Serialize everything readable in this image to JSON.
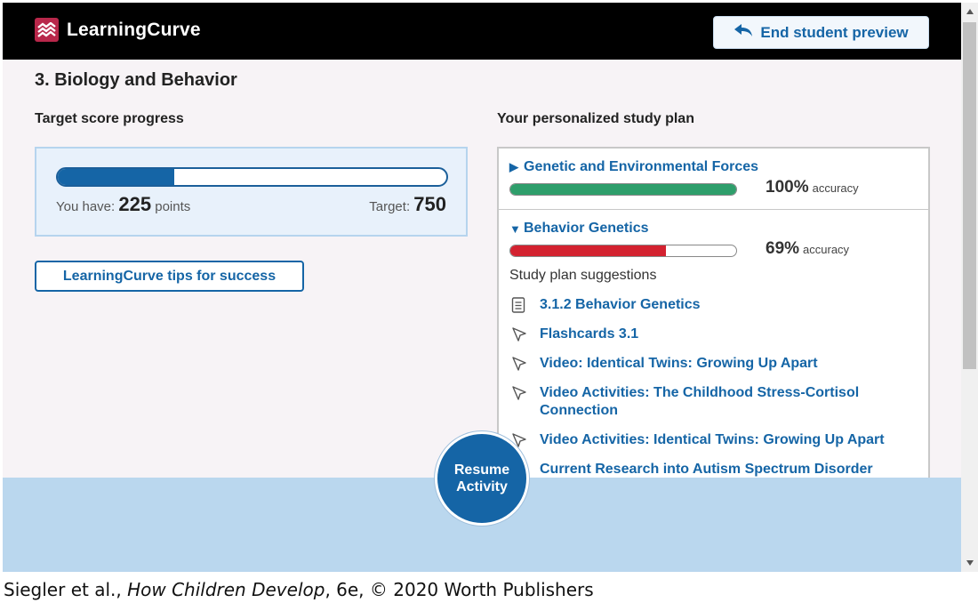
{
  "header": {
    "app_name": "LearningCurve",
    "end_preview_label": "End student preview",
    "brand_color": "#b8274a"
  },
  "page": {
    "title": "3. Biology and Behavior"
  },
  "progress": {
    "label": "Target score progress",
    "you_have_prefix": "You have:",
    "points": "225",
    "points_suffix": "points",
    "target_prefix": "Target:",
    "target": "750",
    "fraction": 0.3
  },
  "tips_button": "LearningCurve tips for success",
  "study_plan": {
    "label": "Your personalized study plan",
    "topics": [
      {
        "arrow": "▶",
        "name": "Genetic and Environmental Forces",
        "accuracy": "100%",
        "accuracy_word": "accuracy",
        "fraction": 1.0,
        "color": "#2e9e6b",
        "expanded": false
      },
      {
        "arrow": "▼",
        "name": "Behavior Genetics",
        "accuracy": "69%",
        "accuracy_word": "accuracy",
        "fraction": 0.69,
        "color": "#d32230",
        "expanded": true
      }
    ],
    "suggestions_label": "Study plan suggestions",
    "suggestions": [
      {
        "icon": "document-icon",
        "label": "3.1.2 Behavior Genetics"
      },
      {
        "icon": "cursor-icon",
        "label": "Flashcards 3.1"
      },
      {
        "icon": "cursor-icon",
        "label": "Video: Identical Twins: Growing Up Apart"
      },
      {
        "icon": "cursor-icon",
        "label": "Video Activities: The Childhood Stress-Cortisol Connection"
      },
      {
        "icon": "cursor-icon",
        "label": "Video Activities: Identical Twins: Growing Up Apart"
      },
      {
        "icon": "cursor-icon",
        "label": "Current Research into Autism Spectrum Disorder"
      }
    ]
  },
  "resume_button": {
    "line1": "Resume",
    "line2": "Activity"
  },
  "credit": {
    "authors": "Siegler et al., ",
    "book": "How Children Develop",
    "rest": ", 6e, © 2020 Worth Publishers"
  },
  "colors": {
    "link": "#1565a6",
    "footer_band": "#bad7ee"
  }
}
